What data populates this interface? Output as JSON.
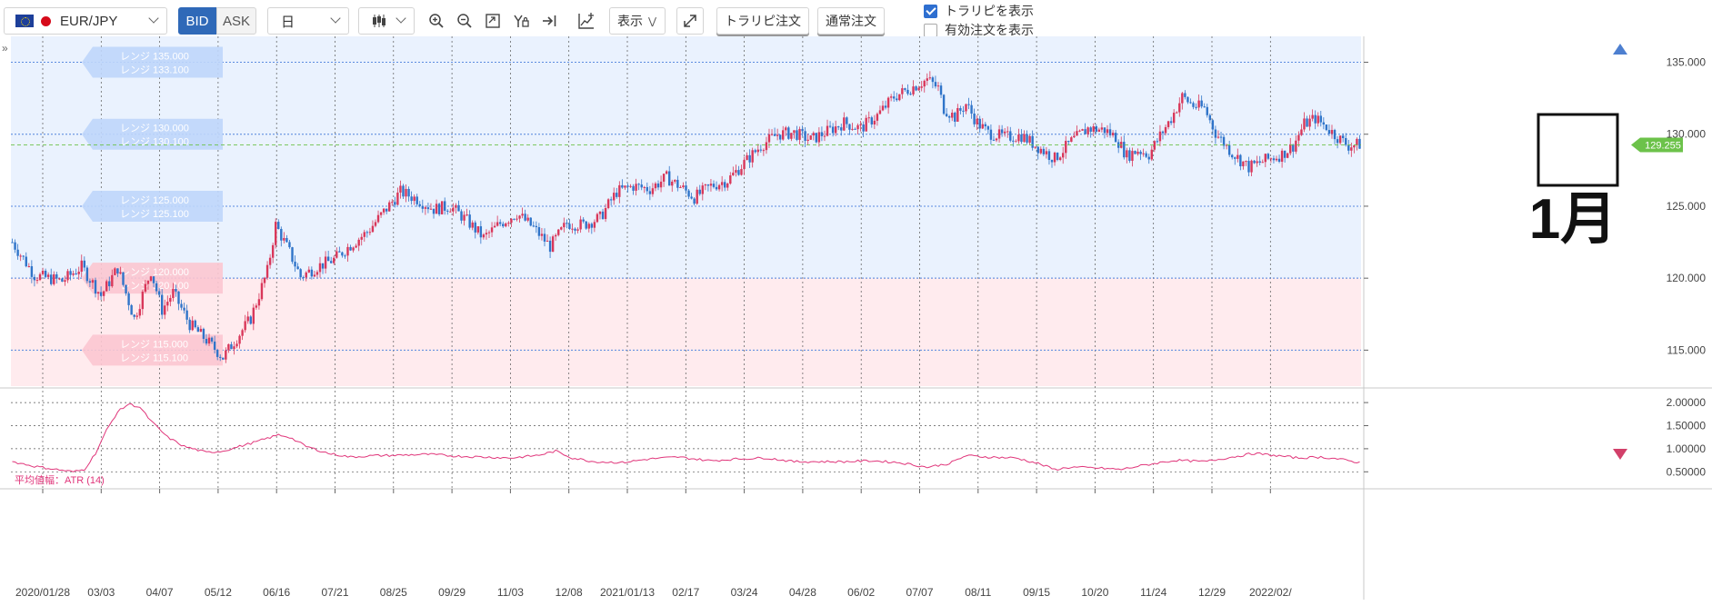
{
  "toolbar": {
    "pair": "EUR/JPY",
    "bid_label": "BID",
    "ask_label": "ASK",
    "period": "日",
    "display_label": "表示",
    "trap_order_label": "トラリピ注文",
    "normal_order_label": "通常注文",
    "show_trap_label": "トラリピを表示",
    "show_trap_checked": true,
    "show_active_label": "有効注文を表示",
    "show_active_checked": false
  },
  "colors": {
    "up": "#d9375a",
    "down": "#2f74c9",
    "buy_zone": "#eaf2fe",
    "sell_zone": "#ffebee",
    "atr_line": "#e0357a",
    "price_tag": "#6cc24a"
  },
  "trap_ranges": [
    {
      "line1": "レンジ 135.000",
      "line2": "レンジ 133.100",
      "price": 135.0,
      "side": "buy"
    },
    {
      "line1": "レンジ 130.000",
      "line2": "レンジ 130.100",
      "price": 130.0,
      "side": "buy"
    },
    {
      "line1": "レンジ 125.000",
      "line2": "レンジ 125.100",
      "price": 125.0,
      "side": "buy"
    },
    {
      "line1": "レンジ 120.000",
      "line2": "レンジ 120.100",
      "price": 120.0,
      "side": "sell"
    },
    {
      "line1": "レンジ 115.000",
      "line2": "レンジ 115.100",
      "price": 115.0,
      "side": "sell"
    }
  ],
  "annotation": {
    "label": "1月"
  },
  "current_price": "129.255",
  "chart_data": [
    {
      "type": "candlestick",
      "title": "EUR/JPY",
      "x_tick_labels": [
        "2020/01/28",
        "03/03",
        "04/07",
        "05/12",
        "06/16",
        "07/21",
        "08/25",
        "09/29",
        "11/03",
        "12/08",
        "2021/01/13",
        "02/17",
        "03/24",
        "04/28",
        "06/02",
        "07/07",
        "08/11",
        "09/15",
        "10/20",
        "11/24",
        "12/29",
        "2022/02/"
      ],
      "y_tick_labels": [
        "135.000",
        "130.000",
        "125.000",
        "120.000",
        "115.000"
      ],
      "ylim": [
        112.5,
        136.8
      ],
      "grid": true,
      "close_path": [
        [
          0,
          122.5
        ],
        [
          8,
          120.2
        ],
        [
          18,
          119.8
        ],
        [
          25,
          120.8
        ],
        [
          32,
          118.8
        ],
        [
          38,
          120.7
        ],
        [
          44,
          117.2
        ],
        [
          50,
          120.5
        ],
        [
          54,
          117.8
        ],
        [
          58,
          119.0
        ],
        [
          64,
          116.8
        ],
        [
          70,
          115.7
        ],
        [
          76,
          114.5
        ],
        [
          80,
          115.6
        ],
        [
          86,
          117.2
        ],
        [
          92,
          120.5
        ],
        [
          95,
          123.7
        ],
        [
          100,
          121.8
        ],
        [
          104,
          120.1
        ],
        [
          110,
          120.8
        ],
        [
          116,
          121.3
        ],
        [
          122,
          122.3
        ],
        [
          128,
          123.2
        ],
        [
          134,
          124.6
        ],
        [
          140,
          126.0
        ],
        [
          146,
          125.5
        ],
        [
          152,
          124.8
        ],
        [
          158,
          125.0
        ],
        [
          164,
          124.0
        ],
        [
          170,
          122.8
        ],
        [
          176,
          123.8
        ],
        [
          182,
          124.5
        ],
        [
          188,
          123.5
        ],
        [
          194,
          122.2
        ],
        [
          200,
          123.8
        ],
        [
          206,
          123.7
        ],
        [
          212,
          124.2
        ],
        [
          218,
          126.0
        ],
        [
          224,
          126.4
        ],
        [
          230,
          126.2
        ],
        [
          236,
          127.0
        ],
        [
          242,
          126.2
        ],
        [
          246,
          125.6
        ],
        [
          252,
          126.4
        ],
        [
          258,
          126.8
        ],
        [
          264,
          128.0
        ],
        [
          270,
          129.2
        ],
        [
          276,
          130.0
        ],
        [
          282,
          130.1
        ],
        [
          288,
          129.6
        ],
        [
          294,
          130.2
        ],
        [
          300,
          130.8
        ],
        [
          306,
          130.4
        ],
        [
          312,
          131.3
        ],
        [
          318,
          132.6
        ],
        [
          324,
          133.2
        ],
        [
          330,
          133.8
        ],
        [
          334,
          133.2
        ],
        [
          336,
          131.8
        ],
        [
          340,
          131.2
        ],
        [
          344,
          132.1
        ],
        [
          348,
          130.8
        ],
        [
          352,
          130.1
        ],
        [
          358,
          129.8
        ],
        [
          364,
          129.9
        ],
        [
          370,
          129.1
        ],
        [
          376,
          128.3
        ],
        [
          382,
          129.5
        ],
        [
          388,
          130.4
        ],
        [
          394,
          130.3
        ],
        [
          398,
          129.8
        ],
        [
          402,
          128.5
        ],
        [
          406,
          128.9
        ],
        [
          410,
          128.6
        ],
        [
          414,
          129.9
        ],
        [
          418,
          131.1
        ],
        [
          422,
          132.6
        ],
        [
          426,
          132.0
        ],
        [
          430,
          131.8
        ],
        [
          434,
          130.1
        ],
        [
          440,
          128.7
        ],
        [
          446,
          127.7
        ],
        [
          452,
          128.2
        ],
        [
          458,
          128.6
        ],
        [
          462,
          129.2
        ],
        [
          466,
          130.7
        ],
        [
          470,
          131.1
        ],
        [
          474,
          130.5
        ],
        [
          478,
          129.8
        ],
        [
          482,
          129.2
        ],
        [
          486,
          129.3
        ]
      ],
      "atr_path": [
        [
          0,
          0.72
        ],
        [
          8,
          0.62
        ],
        [
          16,
          0.55
        ],
        [
          22,
          0.5
        ],
        [
          26,
          0.55
        ],
        [
          30,
          0.9
        ],
        [
          34,
          1.4
        ],
        [
          38,
          1.8
        ],
        [
          42,
          1.97
        ],
        [
          46,
          1.9
        ],
        [
          50,
          1.6
        ],
        [
          56,
          1.25
        ],
        [
          62,
          1.05
        ],
        [
          70,
          0.92
        ],
        [
          76,
          0.95
        ],
        [
          82,
          1.05
        ],
        [
          88,
          1.15
        ],
        [
          96,
          1.3
        ],
        [
          100,
          1.25
        ],
        [
          106,
          1.05
        ],
        [
          114,
          0.9
        ],
        [
          122,
          0.82
        ],
        [
          130,
          0.85
        ],
        [
          140,
          0.86
        ],
        [
          150,
          0.88
        ],
        [
          160,
          0.84
        ],
        [
          170,
          0.82
        ],
        [
          180,
          0.8
        ],
        [
          190,
          0.86
        ],
        [
          196,
          0.95
        ],
        [
          202,
          0.8
        ],
        [
          210,
          0.72
        ],
        [
          220,
          0.7
        ],
        [
          230,
          0.78
        ],
        [
          240,
          0.82
        ],
        [
          252,
          0.74
        ],
        [
          262,
          0.78
        ],
        [
          272,
          0.8
        ],
        [
          282,
          0.72
        ],
        [
          292,
          0.72
        ],
        [
          300,
          0.72
        ],
        [
          310,
          0.74
        ],
        [
          320,
          0.7
        ],
        [
          330,
          0.6
        ],
        [
          338,
          0.68
        ],
        [
          344,
          0.85
        ],
        [
          352,
          0.82
        ],
        [
          362,
          0.8
        ],
        [
          370,
          0.68
        ],
        [
          376,
          0.55
        ],
        [
          382,
          0.6
        ],
        [
          392,
          0.58
        ],
        [
          400,
          0.55
        ],
        [
          406,
          0.62
        ],
        [
          414,
          0.7
        ],
        [
          420,
          0.75
        ],
        [
          430,
          0.72
        ],
        [
          440,
          0.82
        ],
        [
          448,
          0.9
        ],
        [
          456,
          0.85
        ],
        [
          464,
          0.8
        ],
        [
          472,
          0.82
        ],
        [
          478,
          0.78
        ],
        [
          484,
          0.72
        ],
        [
          486,
          0.7
        ]
      ],
      "atr": {
        "label": "平均値幅：ATR (14)",
        "y_tick_labels": [
          "2.00000",
          "1.50000",
          "1.00000",
          "0.50000"
        ],
        "ylim": [
          0.25,
          2.12
        ]
      }
    }
  ]
}
